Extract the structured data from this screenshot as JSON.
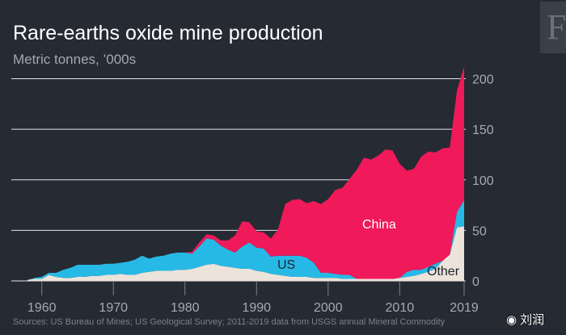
{
  "logo_text": "F",
  "watermark": "刘润",
  "chart_data": {
    "type": "area",
    "stacked": true,
    "title": "Rare-earths oxide mine production",
    "subtitle": "Metric tonnes, ’000s",
    "source": "Sources: US Bureau of Mines; US Geological Survey; 2011-2019 data from USGS annual Mineral Commodity",
    "ylim": [
      0,
      210
    ],
    "xlim": [
      1958,
      2019
    ],
    "y_ticks": [
      0,
      50,
      100,
      150,
      200
    ],
    "x_ticks": [
      1960,
      1970,
      1980,
      1990,
      2000,
      2010,
      2019
    ],
    "grid": true,
    "y_axis_position": "right",
    "x": [
      1958,
      1959,
      1960,
      1961,
      1962,
      1963,
      1964,
      1965,
      1966,
      1967,
      1968,
      1969,
      1970,
      1971,
      1972,
      1973,
      1974,
      1975,
      1976,
      1977,
      1978,
      1979,
      1980,
      1981,
      1982,
      1983,
      1984,
      1985,
      1986,
      1987,
      1988,
      1989,
      1990,
      1991,
      1992,
      1993,
      1994,
      1995,
      1996,
      1997,
      1998,
      1999,
      2000,
      2001,
      2002,
      2003,
      2004,
      2005,
      2006,
      2007,
      2008,
      2009,
      2010,
      2011,
      2012,
      2013,
      2014,
      2015,
      2016,
      2017,
      2018,
      2019
    ],
    "series": [
      {
        "name": "Other",
        "color": "#ece3da",
        "values": [
          1,
          2,
          2,
          6,
          4,
          3,
          3,
          4,
          4,
          5,
          5,
          6,
          6,
          7,
          6,
          6,
          8,
          9,
          10,
          10,
          10,
          11,
          11,
          12,
          14,
          16,
          17,
          15,
          14,
          13,
          12,
          12,
          10,
          9,
          7,
          6,
          5,
          4,
          4,
          4,
          3,
          3,
          3,
          3,
          2,
          2,
          2,
          2,
          2,
          2,
          2,
          2,
          3,
          4,
          5,
          7,
          9,
          12,
          20,
          26,
          53,
          54
        ]
      },
      {
        "name": "US",
        "color": "#27b9e6",
        "values": [
          0,
          1,
          2,
          2,
          4,
          8,
          10,
          12,
          12,
          11,
          11,
          11,
          11,
          11,
          13,
          15,
          17,
          13,
          14,
          15,
          17,
          17,
          17,
          15,
          20,
          26,
          24,
          20,
          17,
          15,
          22,
          26,
          23,
          23,
          17,
          19,
          20,
          21,
          21,
          19,
          15,
          5,
          5,
          4,
          4,
          4,
          0,
          0,
          0,
          0,
          0,
          0,
          0,
          5,
          6,
          4,
          5,
          5,
          0,
          0,
          15,
          26
        ]
      },
      {
        "name": "China",
        "color": "#f0195a",
        "values": [
          0,
          0,
          0,
          0,
          0,
          0,
          0,
          0,
          0,
          0,
          0,
          0,
          0,
          0,
          0,
          0,
          0,
          0,
          0,
          0,
          0,
          0,
          0,
          2,
          4,
          4,
          4,
          5,
          9,
          17,
          25,
          20,
          16,
          16,
          18,
          26,
          51,
          55,
          56,
          54,
          61,
          68,
          73,
          83,
          86,
          95,
          108,
          120,
          118,
          122,
          128,
          127,
          113,
          100,
          100,
          112,
          114,
          110,
          111,
          106,
          120,
          132
        ]
      }
    ],
    "annotations": [
      "China",
      "US",
      "Other"
    ]
  }
}
